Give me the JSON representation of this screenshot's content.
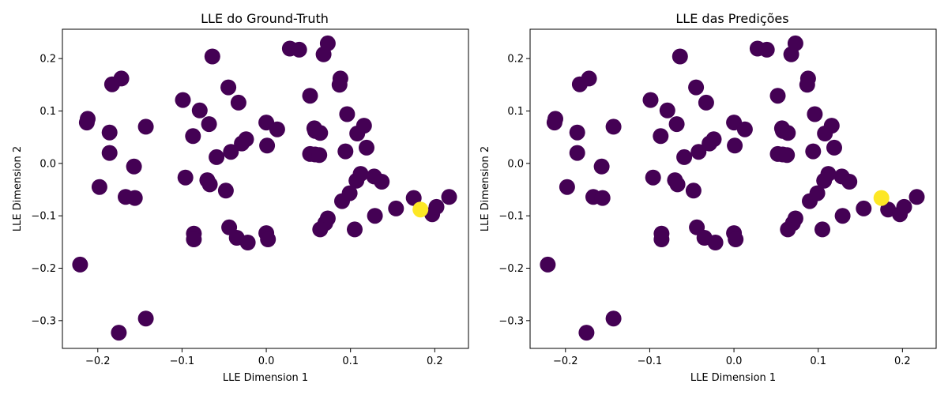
{
  "colors": {
    "regular": "#440154",
    "highlight": "#fde725"
  },
  "chart_data": [
    {
      "type": "scatter",
      "title": "LLE do Ground-Truth",
      "xlabel": "LLE Dimension 1",
      "ylabel": "LLE Dimension 2",
      "xlim": [
        -0.242,
        0.24
      ],
      "ylim": [
        -0.353,
        0.256
      ],
      "xticks": [
        -0.2,
        -0.1,
        0.0,
        0.1,
        0.2
      ],
      "xtick_labels": [
        "−0.2",
        "−0.1",
        "0.0",
        "0.1",
        "0.2"
      ],
      "yticks": [
        -0.3,
        -0.2,
        -0.1,
        0.0,
        0.1,
        0.2
      ],
      "ytick_labels": [
        "−0.3",
        "−0.2",
        "−0.1",
        "0.0",
        "0.1",
        "0.2"
      ],
      "points": [
        [
          -0.221,
          -0.193,
          0
        ],
        [
          -0.212,
          0.085,
          0
        ],
        [
          -0.213,
          0.078,
          0
        ],
        [
          -0.183,
          0.151,
          0
        ],
        [
          -0.172,
          0.162,
          0
        ],
        [
          -0.186,
          0.059,
          0
        ],
        [
          -0.186,
          0.02,
          0
        ],
        [
          -0.198,
          -0.045,
          0
        ],
        [
          -0.157,
          -0.006,
          0
        ],
        [
          -0.167,
          -0.064,
          0
        ],
        [
          -0.156,
          -0.066,
          0
        ],
        [
          -0.143,
          0.07,
          0
        ],
        [
          -0.143,
          -0.296,
          0
        ],
        [
          -0.175,
          -0.323,
          0
        ],
        [
          -0.099,
          0.121,
          0
        ],
        [
          -0.087,
          0.052,
          0
        ],
        [
          -0.079,
          0.101,
          0
        ],
        [
          -0.096,
          -0.027,
          0
        ],
        [
          -0.068,
          0.075,
          0
        ],
        [
          -0.064,
          0.204,
          0
        ],
        [
          -0.07,
          -0.032,
          0
        ],
        [
          -0.067,
          -0.04,
          0
        ],
        [
          -0.059,
          0.012,
          0
        ],
        [
          -0.045,
          0.145,
          0
        ],
        [
          -0.048,
          -0.052,
          0
        ],
        [
          -0.042,
          0.022,
          0
        ],
        [
          -0.033,
          0.116,
          0
        ],
        [
          -0.029,
          0.038,
          0
        ],
        [
          -0.024,
          0.046,
          0
        ],
        [
          -0.044,
          -0.122,
          0
        ],
        [
          -0.035,
          -0.142,
          0
        ],
        [
          -0.022,
          -0.151,
          0
        ],
        [
          -0.086,
          -0.134,
          0
        ],
        [
          -0.086,
          -0.145,
          0
        ],
        [
          0.0,
          0.078,
          0
        ],
        [
          0.001,
          0.034,
          0
        ],
        [
          0.013,
          0.065,
          0
        ],
        [
          0.0,
          -0.133,
          0
        ],
        [
          0.002,
          -0.145,
          0
        ],
        [
          0.028,
          0.219,
          0
        ],
        [
          0.039,
          0.217,
          0
        ],
        [
          0.068,
          0.208,
          0
        ],
        [
          0.073,
          0.229,
          0
        ],
        [
          0.052,
          0.129,
          0
        ],
        [
          0.088,
          0.162,
          0
        ],
        [
          0.087,
          0.15,
          0
        ],
        [
          0.057,
          0.067,
          0
        ],
        [
          0.058,
          0.062,
          0
        ],
        [
          0.064,
          0.058,
          0
        ],
        [
          0.052,
          0.018,
          0
        ],
        [
          0.058,
          0.017,
          0
        ],
        [
          0.063,
          0.016,
          0
        ],
        [
          0.096,
          0.094,
          0
        ],
        [
          0.116,
          0.072,
          0
        ],
        [
          0.108,
          0.057,
          0
        ],
        [
          0.094,
          0.023,
          0
        ],
        [
          0.119,
          0.03,
          0
        ],
        [
          0.112,
          -0.02,
          0
        ],
        [
          0.107,
          -0.033,
          0
        ],
        [
          0.128,
          -0.025,
          0
        ],
        [
          0.137,
          -0.035,
          0
        ],
        [
          0.09,
          -0.072,
          0
        ],
        [
          0.099,
          -0.057,
          0
        ],
        [
          0.073,
          -0.105,
          0
        ],
        [
          0.07,
          -0.114,
          0
        ],
        [
          0.064,
          -0.126,
          0
        ],
        [
          0.105,
          -0.126,
          0
        ],
        [
          0.129,
          -0.1,
          0
        ],
        [
          0.154,
          -0.086,
          0
        ],
        [
          0.175,
          -0.066,
          0
        ],
        [
          0.183,
          -0.088,
          1
        ],
        [
          0.197,
          -0.097,
          0
        ],
        [
          0.202,
          -0.083,
          0
        ],
        [
          0.217,
          -0.064,
          0
        ]
      ]
    },
    {
      "type": "scatter",
      "title": "LLE das Predições",
      "xlabel": "LLE Dimension 1",
      "ylabel": "LLE Dimension 2",
      "xlim": [
        -0.242,
        0.24
      ],
      "ylim": [
        -0.353,
        0.256
      ],
      "xticks": [
        -0.2,
        -0.1,
        0.0,
        0.1,
        0.2
      ],
      "xtick_labels": [
        "−0.2",
        "−0.1",
        "0.0",
        "0.1",
        "0.2"
      ],
      "yticks": [
        -0.3,
        -0.2,
        -0.1,
        0.0,
        0.1,
        0.2
      ],
      "ytick_labels": [
        "−0.3",
        "−0.2",
        "−0.1",
        "0.0",
        "0.1",
        "0.2"
      ],
      "points": [
        [
          -0.221,
          -0.193,
          0
        ],
        [
          -0.212,
          0.085,
          0
        ],
        [
          -0.213,
          0.078,
          0
        ],
        [
          -0.183,
          0.151,
          0
        ],
        [
          -0.172,
          0.162,
          0
        ],
        [
          -0.186,
          0.059,
          0
        ],
        [
          -0.186,
          0.02,
          0
        ],
        [
          -0.198,
          -0.045,
          0
        ],
        [
          -0.157,
          -0.006,
          0
        ],
        [
          -0.167,
          -0.064,
          0
        ],
        [
          -0.156,
          -0.066,
          0
        ],
        [
          -0.143,
          0.07,
          0
        ],
        [
          -0.143,
          -0.296,
          0
        ],
        [
          -0.175,
          -0.323,
          0
        ],
        [
          -0.099,
          0.121,
          0
        ],
        [
          -0.087,
          0.052,
          0
        ],
        [
          -0.079,
          0.101,
          0
        ],
        [
          -0.096,
          -0.027,
          0
        ],
        [
          -0.068,
          0.075,
          0
        ],
        [
          -0.064,
          0.204,
          0
        ],
        [
          -0.07,
          -0.032,
          0
        ],
        [
          -0.067,
          -0.04,
          0
        ],
        [
          -0.059,
          0.012,
          0
        ],
        [
          -0.045,
          0.145,
          0
        ],
        [
          -0.048,
          -0.052,
          0
        ],
        [
          -0.042,
          0.022,
          0
        ],
        [
          -0.033,
          0.116,
          0
        ],
        [
          -0.029,
          0.038,
          0
        ],
        [
          -0.024,
          0.046,
          0
        ],
        [
          -0.044,
          -0.122,
          0
        ],
        [
          -0.035,
          -0.142,
          0
        ],
        [
          -0.022,
          -0.151,
          0
        ],
        [
          -0.086,
          -0.134,
          0
        ],
        [
          -0.086,
          -0.145,
          0
        ],
        [
          0.0,
          0.078,
          0
        ],
        [
          0.001,
          0.034,
          0
        ],
        [
          0.013,
          0.065,
          0
        ],
        [
          0.0,
          -0.133,
          0
        ],
        [
          0.002,
          -0.145,
          0
        ],
        [
          0.028,
          0.219,
          0
        ],
        [
          0.039,
          0.217,
          0
        ],
        [
          0.068,
          0.208,
          0
        ],
        [
          0.073,
          0.229,
          0
        ],
        [
          0.052,
          0.129,
          0
        ],
        [
          0.088,
          0.162,
          0
        ],
        [
          0.087,
          0.15,
          0
        ],
        [
          0.057,
          0.067,
          0
        ],
        [
          0.058,
          0.062,
          0
        ],
        [
          0.064,
          0.058,
          0
        ],
        [
          0.052,
          0.018,
          0
        ],
        [
          0.058,
          0.017,
          0
        ],
        [
          0.063,
          0.016,
          0
        ],
        [
          0.096,
          0.094,
          0
        ],
        [
          0.116,
          0.072,
          0
        ],
        [
          0.108,
          0.057,
          0
        ],
        [
          0.094,
          0.023,
          0
        ],
        [
          0.119,
          0.03,
          0
        ],
        [
          0.112,
          -0.02,
          0
        ],
        [
          0.107,
          -0.033,
          0
        ],
        [
          0.128,
          -0.025,
          0
        ],
        [
          0.137,
          -0.035,
          0
        ],
        [
          0.09,
          -0.072,
          0
        ],
        [
          0.099,
          -0.057,
          0
        ],
        [
          0.073,
          -0.105,
          0
        ],
        [
          0.07,
          -0.114,
          0
        ],
        [
          0.064,
          -0.126,
          0
        ],
        [
          0.105,
          -0.126,
          0
        ],
        [
          0.129,
          -0.1,
          0
        ],
        [
          0.154,
          -0.086,
          0
        ],
        [
          0.175,
          -0.066,
          1
        ],
        [
          0.183,
          -0.088,
          0
        ],
        [
          0.197,
          -0.097,
          0
        ],
        [
          0.202,
          -0.083,
          0
        ],
        [
          0.217,
          -0.064,
          0
        ]
      ]
    }
  ]
}
